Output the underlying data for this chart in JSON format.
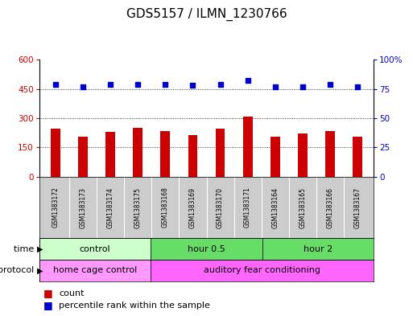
{
  "title": "GDS5157 / ILMN_1230766",
  "samples": [
    "GSM1383172",
    "GSM1383173",
    "GSM1383174",
    "GSM1383175",
    "GSM1383168",
    "GSM1383169",
    "GSM1383170",
    "GSM1383171",
    "GSM1383164",
    "GSM1383165",
    "GSM1383166",
    "GSM1383167"
  ],
  "counts": [
    245,
    205,
    228,
    250,
    235,
    215,
    245,
    310,
    205,
    220,
    235,
    205
  ],
  "percentiles": [
    79,
    77,
    79,
    79,
    79,
    78,
    79,
    82,
    77,
    77,
    79,
    77
  ],
  "bar_color": "#cc0000",
  "dot_color": "#0000cc",
  "ylim_left": [
    0,
    600
  ],
  "ylim_right": [
    0,
    100
  ],
  "yticks_left": [
    0,
    150,
    300,
    450,
    600
  ],
  "yticks_right": [
    0,
    25,
    50,
    75,
    100
  ],
  "ytick_labels_right": [
    "0",
    "25",
    "50",
    "75",
    "100%"
  ],
  "grid_values": [
    150,
    300,
    450
  ],
  "time_groups": [
    {
      "label": "control",
      "start": 0,
      "end": 4,
      "color": "#ccffcc"
    },
    {
      "label": "hour 0.5",
      "start": 4,
      "end": 8,
      "color": "#66dd66"
    },
    {
      "label": "hour 2",
      "start": 8,
      "end": 12,
      "color": "#66dd66"
    }
  ],
  "protocol_groups": [
    {
      "label": "home cage control",
      "start": 0,
      "end": 4,
      "color": "#ff99ff"
    },
    {
      "label": "auditory fear conditioning",
      "start": 4,
      "end": 12,
      "color": "#ff66ff"
    }
  ],
  "time_label": "time",
  "protocol_label": "protocol",
  "legend_count_label": "count",
  "legend_pct_label": "percentile rank within the sample",
  "background_color": "#ffffff",
  "sample_row_color": "#cccccc",
  "title_fontsize": 11,
  "axis_label_color_left": "#cc0000",
  "axis_label_color_right": "#0000cc"
}
